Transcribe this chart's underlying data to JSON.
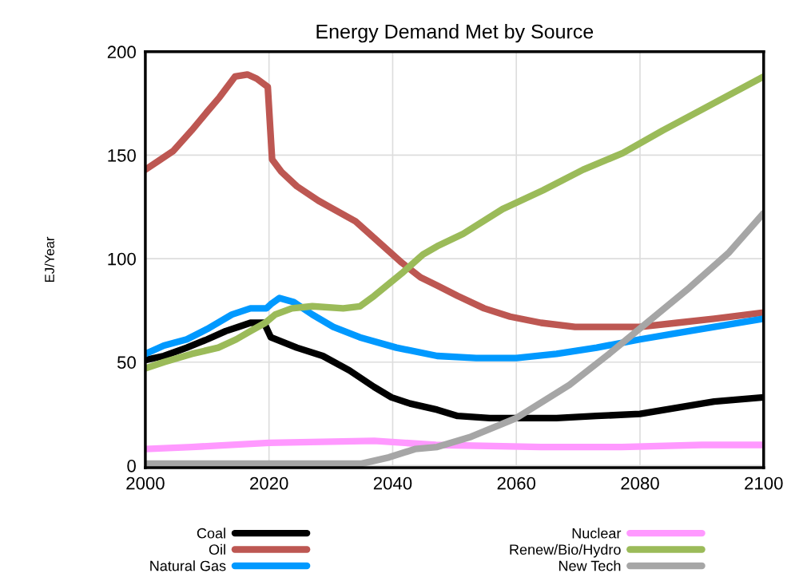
{
  "chart_data": {
    "type": "line",
    "title": "Energy Demand Met by Source",
    "ylabel": "EJ/Year",
    "xlim": [
      2000,
      2100
    ],
    "xticks": [
      2000,
      2020,
      2040,
      2060,
      2080,
      2100
    ],
    "ylim": [
      -1,
      200
    ],
    "yticks": [
      0,
      50,
      100,
      150,
      200
    ],
    "grid": true,
    "legend": "bottom",
    "marker": "none",
    "line_style": "solid",
    "series": [
      {
        "name": "Coal",
        "color": "#000000",
        "x": [
          2000,
          2003,
          2006.7,
          2010,
          2013,
          2015,
          2017,
          2019.2,
          2020.3,
          2024.5,
          2028.7,
          2033,
          2037,
          2039.8,
          2042.8,
          2047.2,
          2050.5,
          2055.7,
          2066.5,
          2073,
          2080,
          2086,
          2092,
          2100
        ],
        "values": [
          51,
          53,
          57,
          61,
          65,
          67,
          69,
          69,
          62,
          57,
          53,
          46,
          38,
          33,
          30,
          27,
          24,
          23,
          23,
          24,
          25,
          28,
          31,
          33
        ]
      },
      {
        "name": "Oil",
        "color": "#bd5752",
        "x": [
          2000,
          2002,
          2004.5,
          2007.5,
          2010,
          2012,
          2014.5,
          2016.5,
          2018,
          2019.8,
          2020.5,
          2022,
          2024.5,
          2028,
          2034,
          2037,
          2041.5,
          2044.5,
          2047.2,
          2050.5,
          2054.8,
          2059,
          2064,
          2069.5,
          2080,
          2086,
          2092,
          2100
        ],
        "values": [
          143,
          147,
          152,
          162,
          171,
          178,
          188,
          189,
          187,
          183,
          148,
          142,
          135,
          128,
          118,
          110,
          98,
          91,
          87,
          82,
          76,
          72,
          69,
          67,
          67,
          69,
          71,
          74
        ]
      },
      {
        "name": "Natural Gas",
        "color": "#0099ff",
        "x": [
          2000,
          2003,
          2006.7,
          2010,
          2014,
          2017,
          2019.6,
          2020.3,
          2021.7,
          2024,
          2027,
          2030.4,
          2034.7,
          2040.6,
          2047.2,
          2053.5,
          2060,
          2066.5,
          2073,
          2080,
          2086,
          2092,
          2100
        ],
        "values": [
          54,
          58,
          61,
          66,
          73,
          76,
          76,
          78,
          81,
          79,
          73,
          67,
          62,
          57,
          53,
          52,
          52,
          54,
          57,
          61,
          64,
          67,
          71
        ]
      },
      {
        "name": "Nuclear",
        "color": "#ff99ff",
        "x": [
          2000,
          2007.5,
          2020,
          2037,
          2047,
          2064,
          2077,
          2090,
          2100
        ],
        "values": [
          8,
          9,
          11,
          12,
          10,
          9,
          9,
          10,
          10
        ]
      },
      {
        "name": "Renew/Bio/Hydro",
        "color": "#9bbb59",
        "x": [
          2000,
          2003,
          2007.5,
          2011.8,
          2014.7,
          2017,
          2019.4,
          2021,
          2023.7,
          2027,
          2032,
          2034.7,
          2037,
          2041.5,
          2044.9,
          2047.2,
          2051.4,
          2057.8,
          2064.3,
          2070.8,
          2077.2,
          2083.7,
          2090,
          2100
        ],
        "values": [
          47,
          50,
          54,
          57,
          61,
          65,
          69,
          73,
          76,
          77,
          76,
          77,
          82,
          93,
          102,
          106,
          112,
          124,
          133,
          143,
          151,
          162,
          172,
          188
        ]
      },
      {
        "name": "New Tech",
        "color": "#a6a6a6",
        "x": [
          2000,
          2035,
          2039.4,
          2043.6,
          2047.2,
          2052.7,
          2060,
          2068.6,
          2075,
          2081.5,
          2088,
          2094.4,
          2100
        ],
        "values": [
          1,
          1,
          4,
          8,
          9,
          14,
          23,
          39,
          54,
          70,
          86,
          103,
          122
        ]
      }
    ]
  }
}
